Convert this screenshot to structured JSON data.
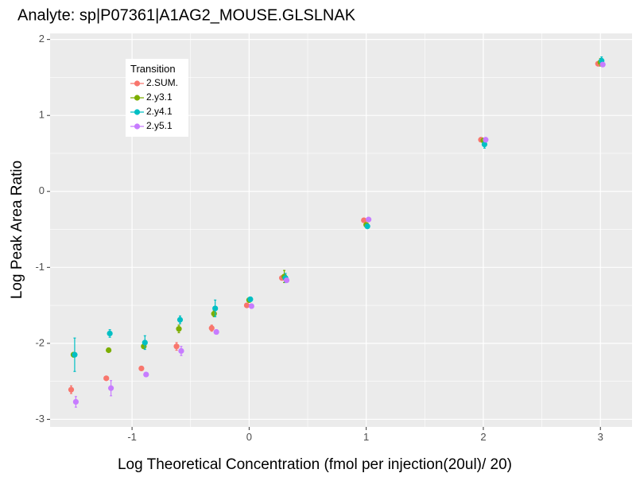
{
  "chart_data": {
    "type": "scatter",
    "title": "Analyte: sp|P07361|A1AG2_MOUSE.GLSLNAK",
    "xlabel": "Log Theoretical Concentration (fmol per injection(20ul)/ 20)",
    "ylabel": "Log Peak Area Ratio",
    "xlim": [
      -1.7,
      3.27
    ],
    "ylim": [
      -3.1,
      2.08
    ],
    "x_ticks": [
      -1,
      0,
      1,
      2,
      3
    ],
    "x_tick_labels": [
      "-1",
      "0",
      "1",
      "2",
      "3"
    ],
    "y_ticks": [
      -3,
      -2,
      -1,
      0,
      1,
      2
    ],
    "y_tick_labels": [
      "-3",
      "-2",
      "-1",
      "0",
      "1",
      "2"
    ],
    "legend": {
      "title": "Transition",
      "position": "top-left"
    },
    "series": [
      {
        "name": "2.SUM.",
        "color": "#F8766D",
        "x": [
          -1.52,
          -1.22,
          -0.92,
          -0.62,
          -0.32,
          -0.02,
          0.28,
          0.98,
          1.98,
          2.98
        ],
        "y": [
          -2.61,
          -2.46,
          -2.33,
          -2.04,
          -1.8,
          -1.5,
          -1.14,
          -0.38,
          0.68,
          1.68
        ],
        "err": [
          0.05,
          0.02,
          0.02,
          0.05,
          0.04,
          0.02,
          0.02,
          0.02,
          0.02,
          0.02
        ]
      },
      {
        "name": "2.y3.1",
        "color": "#7CAE00",
        "x": [
          -1.5,
          -1.2,
          -0.9,
          -0.6,
          -0.3,
          0.0,
          0.3,
          1.0,
          2.0,
          3.0
        ],
        "y": [
          -2.15,
          -2.09,
          -2.04,
          -1.81,
          -1.61,
          -1.43,
          -1.12,
          -0.44,
          0.67,
          1.7
        ],
        "err": [
          0.03,
          0.02,
          0.02,
          0.05,
          0.04,
          0.03,
          0.08,
          0.02,
          0.02,
          0.05
        ]
      },
      {
        "name": "2.y4.1",
        "color": "#00BFC4",
        "x": [
          -1.49,
          -1.19,
          -0.89,
          -0.59,
          -0.29,
          0.01,
          0.31,
          1.01,
          2.01,
          3.01
        ],
        "y": [
          -2.15,
          -1.87,
          -1.99,
          -1.69,
          -1.54,
          -1.42,
          -1.14,
          -0.46,
          0.62,
          1.72
        ],
        "err": [
          0.22,
          0.05,
          0.09,
          0.05,
          0.11,
          0.03,
          0.06,
          0.02,
          0.05,
          0.05
        ]
      },
      {
        "name": "2.y5.1",
        "color": "#C77CFF",
        "x": [
          -1.48,
          -1.18,
          -0.88,
          -0.58,
          -0.28,
          0.02,
          0.32,
          1.02,
          2.02,
          3.02
        ],
        "y": [
          -2.77,
          -2.59,
          -2.41,
          -2.1,
          -1.85,
          -1.51,
          -1.17,
          -0.37,
          0.68,
          1.67
        ],
        "err": [
          0.07,
          0.1,
          0.02,
          0.06,
          0.03,
          0.02,
          0.02,
          0.02,
          0.02,
          0.02
        ]
      }
    ]
  }
}
